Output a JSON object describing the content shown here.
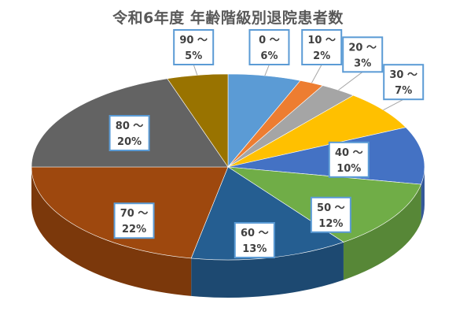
{
  "chart_data": {
    "type": "pie",
    "title": "令和6年度 年齢階級別退院患者数",
    "categories": [
      "0 ～",
      "10 ～",
      "20 ～",
      "30 ～",
      "40 ～",
      "50 ～",
      "60 ～",
      "70 ～",
      "80 ～",
      "90 ～"
    ],
    "values": [
      6,
      2,
      3,
      7,
      10,
      12,
      13,
      22,
      20,
      5
    ],
    "value_labels": [
      "6%",
      "2%",
      "3%",
      "7%",
      "10%",
      "12%",
      "13%",
      "22%",
      "20%",
      "5%"
    ],
    "colors": [
      "#5b9bd5",
      "#ed7d31",
      "#a5a5a5",
      "#ffc000",
      "#4472c4",
      "#70ad47",
      "#255e91",
      "#9e480e",
      "#636363",
      "#997300"
    ],
    "style": "3d-pie"
  }
}
